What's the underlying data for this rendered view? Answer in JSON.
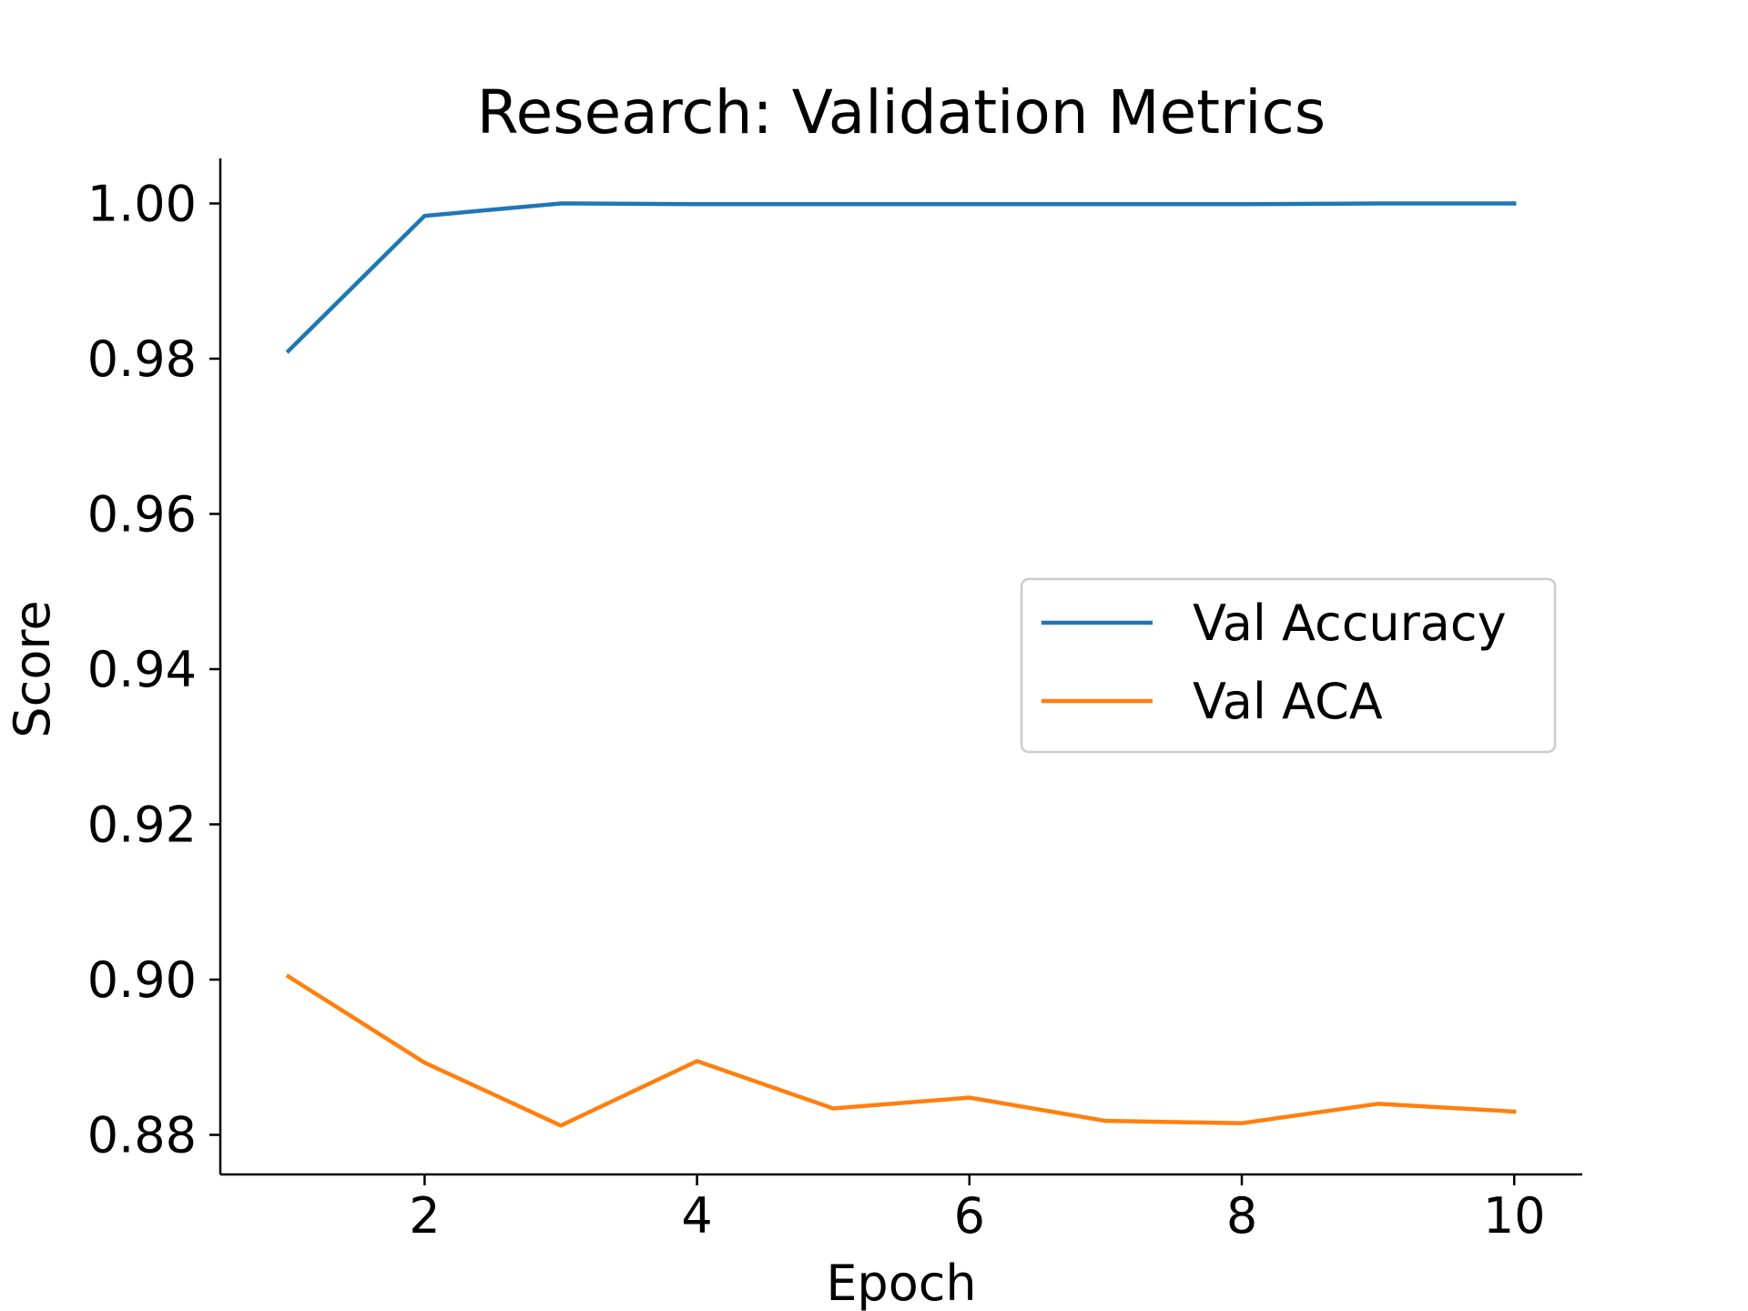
{
  "chart_data": {
    "type": "line",
    "title": "Research: Validation Metrics",
    "xlabel": "Epoch",
    "ylabel": "Score",
    "x": [
      1,
      2,
      3,
      4,
      5,
      6,
      7,
      8,
      9,
      10
    ],
    "xlim": [
      0.5,
      10.5
    ],
    "ylim": [
      0.8749,
      1.0058
    ],
    "xticks": [
      2,
      4,
      6,
      8,
      10
    ],
    "xtick_labels": [
      "2",
      "4",
      "6",
      "8",
      "10"
    ],
    "yticks": [
      0.88,
      0.9,
      0.92,
      0.94,
      0.96,
      0.98,
      1.0
    ],
    "ytick_labels": [
      "0.88",
      "0.90",
      "0.92",
      "0.94",
      "0.96",
      "0.98",
      "1.00"
    ],
    "grid": false,
    "legend_position": "center-right",
    "series": [
      {
        "name": "Val Accuracy",
        "color": "#1f77b4",
        "values": [
          0.981,
          0.9984,
          1.0,
          0.9999,
          0.9999,
          0.9999,
          0.9999,
          0.9999,
          1.0,
          1.0
        ]
      },
      {
        "name": "Val ACA",
        "color": "#ff7f0e",
        "values": [
          0.9004,
          0.8893,
          0.8812,
          0.8895,
          0.8834,
          0.8848,
          0.8818,
          0.8815,
          0.884,
          0.883
        ]
      }
    ]
  }
}
